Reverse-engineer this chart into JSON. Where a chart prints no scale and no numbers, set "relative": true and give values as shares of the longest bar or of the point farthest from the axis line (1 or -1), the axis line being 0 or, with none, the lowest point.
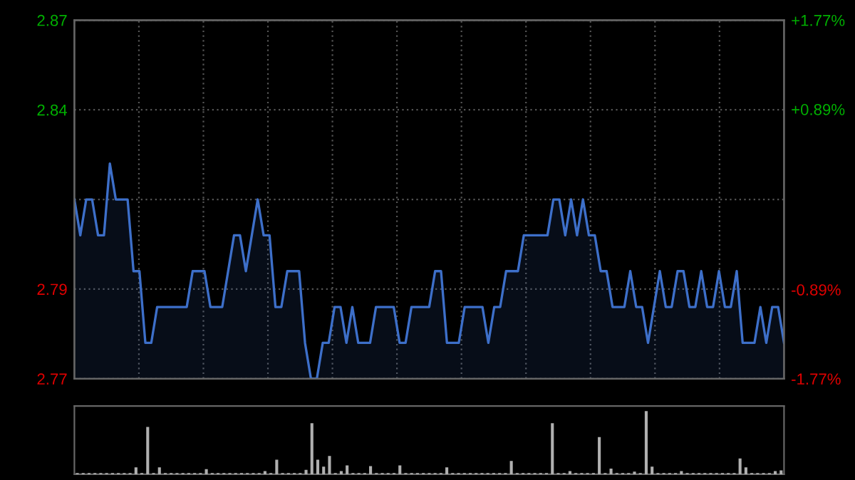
{
  "chart_data": [
    {
      "type": "area",
      "categories": [
        null,
        null,
        null,
        null,
        null,
        null,
        null,
        null,
        null,
        null,
        null,
        null,
        null,
        null,
        null,
        null,
        null,
        null,
        null,
        null,
        null,
        null,
        null,
        null,
        null,
        null,
        null,
        null,
        null,
        null,
        null,
        null,
        null,
        null,
        null,
        null,
        null,
        null,
        null,
        null,
        null,
        null,
        null,
        null,
        null,
        null,
        null,
        null,
        null,
        null,
        null,
        null,
        null,
        null,
        null,
        null,
        null,
        null,
        null,
        null,
        null,
        null,
        null,
        null,
        null,
        null,
        null,
        null,
        null,
        null,
        null,
        null,
        null,
        null,
        null,
        null,
        null,
        null,
        null,
        null,
        null,
        null,
        null,
        null,
        null,
        null,
        null,
        null,
        null,
        null,
        null,
        null,
        null,
        null,
        null,
        null,
        null,
        null,
        null,
        null,
        null,
        null,
        null,
        null,
        null,
        null,
        null,
        null,
        null,
        null,
        null,
        null,
        null,
        null,
        null,
        null,
        null,
        null,
        null,
        null,
        null
      ],
      "ylim": [
        2.77,
        2.87
      ],
      "yticks": [
        {
          "value": 2.77,
          "label": "2.77"
        },
        {
          "value": 2.795,
          "label": "2.79"
        },
        {
          "value": 2.82,
          "label": null
        },
        {
          "value": 2.845,
          "label": "2.84"
        },
        {
          "value": 2.87,
          "label": "2.87"
        }
      ],
      "y2lim": [
        -1.77,
        1.77
      ],
      "y2ticks": [
        {
          "value": -1.77,
          "label": "-1.77%"
        },
        {
          "value": -0.89,
          "label": "-0.89%"
        },
        {
          "value": 0,
          "label": null
        },
        {
          "value": 0.89,
          "label": "+0.89%"
        },
        {
          "value": 1.77,
          "label": "+1.77%"
        }
      ],
      "grid": true,
      "tick_labels": "y",
      "series": [
        {
          "color": "#3d6fc9",
          "values": [
            2.82,
            2.81,
            2.82,
            2.82,
            2.81,
            2.81,
            2.83,
            2.82,
            2.82,
            2.82,
            2.8,
            2.8,
            2.78,
            2.78,
            2.79,
            2.79,
            2.79,
            2.79,
            2.79,
            2.79,
            2.8,
            2.8,
            2.8,
            2.79,
            2.79,
            2.79,
            2.8,
            2.81,
            2.81,
            2.8,
            2.81,
            2.82,
            2.81,
            2.81,
            2.79,
            2.79,
            2.8,
            2.8,
            2.8,
            2.78,
            2.77,
            2.77,
            2.78,
            2.78,
            2.79,
            2.79,
            2.78,
            2.79,
            2.78,
            2.78,
            2.78,
            2.79,
            2.79,
            2.79,
            2.79,
            2.78,
            2.78,
            2.79,
            2.79,
            2.79,
            2.79,
            2.8,
            2.8,
            2.78,
            2.78,
            2.78,
            2.79,
            2.79,
            2.79,
            2.79,
            2.78,
            2.79,
            2.79,
            2.8,
            2.8,
            2.8,
            2.81,
            2.81,
            2.81,
            2.81,
            2.81,
            2.82,
            2.82,
            2.81,
            2.82,
            2.81,
            2.82,
            2.81,
            2.81,
            2.8,
            2.8,
            2.79,
            2.79,
            2.79,
            2.8,
            2.79,
            2.79,
            2.78,
            2.79,
            2.8,
            2.79,
            2.79,
            2.8,
            2.8,
            2.79,
            2.79,
            2.8,
            2.79,
            2.79,
            2.8,
            2.79,
            2.79,
            2.8,
            2.78,
            2.78,
            2.78,
            2.79,
            2.78,
            2.79,
            2.79,
            2.78
          ]
        }
      ]
    },
    {
      "type": "bar",
      "relative": true,
      "tick_labels": false,
      "categories": [
        null,
        null,
        null,
        null,
        null,
        null,
        null,
        null,
        null,
        null,
        null,
        null,
        null,
        null,
        null,
        null,
        null,
        null,
        null,
        null,
        null,
        null,
        null,
        null,
        null,
        null,
        null,
        null,
        null,
        null,
        null,
        null,
        null,
        null,
        null,
        null,
        null,
        null,
        null,
        null,
        null,
        null,
        null,
        null,
        null,
        null,
        null,
        null,
        null,
        null,
        null,
        null,
        null,
        null,
        null,
        null,
        null,
        null,
        null,
        null,
        null,
        null,
        null,
        null,
        null,
        null,
        null,
        null,
        null,
        null,
        null,
        null,
        null,
        null,
        null,
        null,
        null,
        null,
        null,
        null,
        null,
        null,
        null,
        null,
        null,
        null,
        null,
        null,
        null,
        null,
        null,
        null,
        null,
        null,
        null,
        null,
        null,
        null,
        null,
        null,
        null,
        null,
        null,
        null,
        null,
        null,
        null,
        null,
        null,
        null,
        null,
        null,
        null,
        null,
        null,
        null,
        null,
        null,
        null,
        null,
        null
      ],
      "series": [
        {
          "color": "#b0b0b0",
          "values": [
            0.02,
            0.02,
            0.02,
            0.02,
            0.02,
            0.02,
            0.02,
            0.02,
            0.02,
            0.02,
            0.11,
            0.02,
            0.75,
            0.02,
            0.11,
            0.02,
            0.02,
            0.02,
            0.02,
            0.02,
            0.02,
            0.02,
            0.08,
            0.02,
            0.02,
            0.02,
            0.02,
            0.02,
            0.02,
            0.02,
            0.02,
            0.02,
            0.05,
            0.02,
            0.23,
            0.02,
            0.02,
            0.02,
            0.02,
            0.07,
            0.81,
            0.23,
            0.12,
            0.29,
            0.02,
            0.05,
            0.14,
            0.02,
            0.02,
            0.02,
            0.13,
            0.02,
            0.02,
            0.02,
            0.02,
            0.14,
            0.02,
            0.02,
            0.02,
            0.02,
            0.02,
            0.02,
            0.02,
            0.11,
            0.02,
            0.02,
            0.02,
            0.02,
            0.02,
            0.02,
            0.02,
            0.02,
            0.02,
            0.02,
            0.21,
            0.02,
            0.02,
            0.02,
            0.02,
            0.02,
            0.02,
            0.81,
            0.02,
            0.02,
            0.05,
            0.02,
            0.02,
            0.02,
            0.02,
            0.59,
            0.02,
            0.09,
            0.02,
            0.02,
            0.02,
            0.04,
            0.02,
            1,
            0.12,
            0.02,
            0.02,
            0.02,
            0.02,
            0.05,
            0.02,
            0.02,
            0.02,
            0.02,
            0.02,
            0.02,
            0.02,
            0.02,
            0.02,
            0.25,
            0.11,
            0.02,
            0.02,
            0.02,
            0.02,
            0.05,
            0.06
          ]
        }
      ]
    }
  ]
}
